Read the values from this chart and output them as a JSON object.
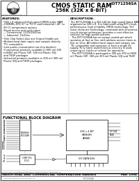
{
  "title_part": "IDT71256SA",
  "title_main": "CMOS STATIC RAM",
  "title_sub": "256K (32K x 8-BIT)",
  "bg_color": "#f0f0f0",
  "border_color": "#555555",
  "features_title": "FEATURES:",
  "description_title": "DESCRIPTION:",
  "block_diagram_title": "FUNCTIONAL BLOCK DIAGRAM",
  "footer_trademark": "The IDT logo is a registered trademark of Integrated Device Technology, Inc.",
  "footer_range": "INDUSTRIAL AND COMMERCIAL TEMPERATURE RANGES",
  "footer_date": "MAY 1994",
  "footer_doc": "IDT71256SA",
  "footer_copy": "© 1993 Integrated Device Technology, Inc.",
  "footer_page": "1"
}
